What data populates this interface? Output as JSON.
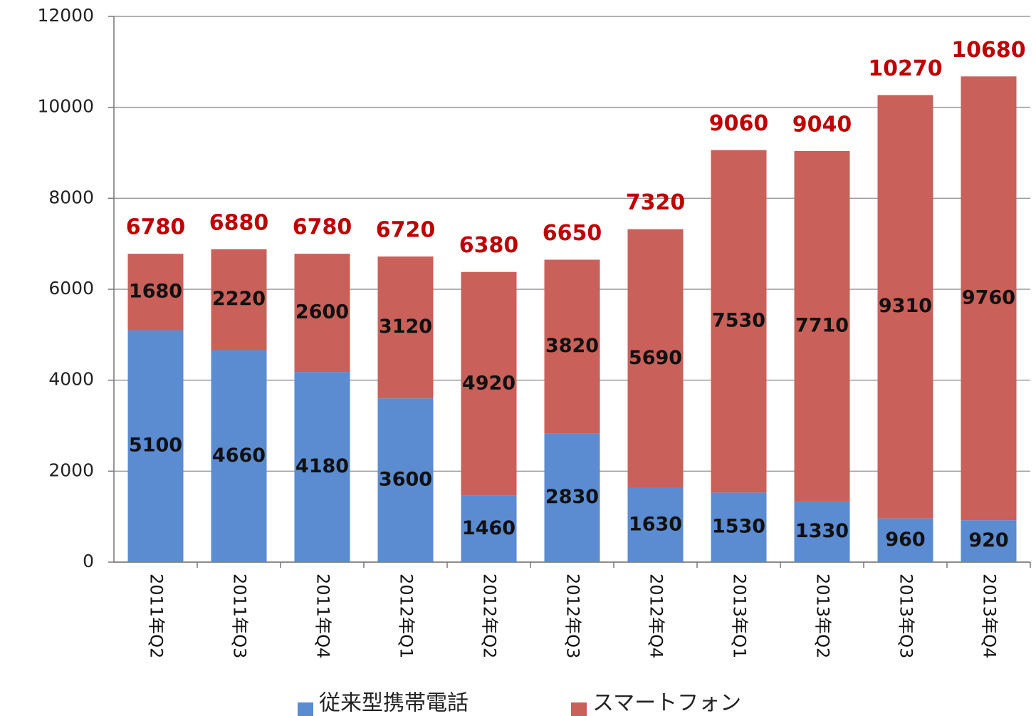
{
  "chart_data": {
    "type": "stacked_bar",
    "categories": [
      "2011年Q2",
      "2011年Q3",
      "2011年Q4",
      "2012年Q1",
      "2012年Q2",
      "2012年Q3",
      "2012年Q4",
      "2013年Q1",
      "2013年Q2",
      "2013年Q3",
      "2013年Q4"
    ],
    "series": [
      {
        "name": "従来型携帯電話",
        "color": "#5b8bd0",
        "values": [
          5100,
          4660,
          4180,
          3600,
          1460,
          2830,
          1630,
          1530,
          1330,
          960,
          920
        ]
      },
      {
        "name": "スマートフォン",
        "color": "#c9605a",
        "values": [
          1680,
          2220,
          2600,
          3120,
          4920,
          3820,
          5690,
          7530,
          7710,
          9310,
          9760
        ]
      }
    ],
    "totals": [
      6780,
      6880,
      6780,
      6720,
      6380,
      6650,
      7320,
      9060,
      9040,
      10270,
      10680
    ],
    "ylim": [
      0,
      12000
    ],
    "yticks": [
      0,
      2000,
      4000,
      6000,
      8000,
      10000,
      12000
    ],
    "grid": true,
    "legend": "bottom"
  }
}
